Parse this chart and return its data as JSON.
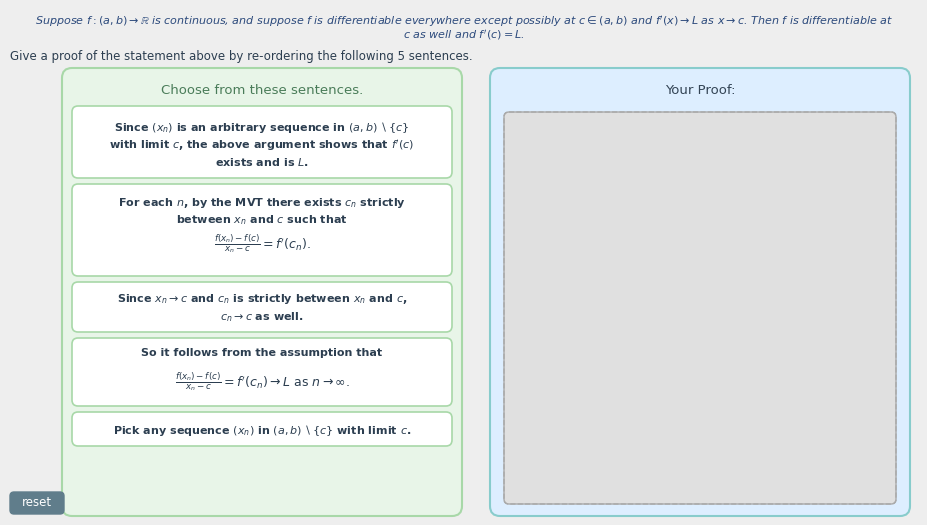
{
  "bg_color": "#eeeeee",
  "title_line1": "Suppose $f:(a,b)\\to\\mathbb{R}$ is continuous, and suppose $f$ is differentiable everywhere except possibly at $c\\in(a,b)$ and $f^{\\prime}(x)\\to L$ as $x\\to c$. Then $f$ is differentiable at",
  "title_line2": "$c$ as well and $f^{\\prime}(c)=L$.",
  "subtitle": "Give a proof of the statement above by re-ordering the following 5 sentences.",
  "left_panel_bg": "#e8f5e8",
  "left_panel_border": "#a8d8a8",
  "left_panel_title": "Choose from these sentences.",
  "left_panel_title_color": "#4a7c59",
  "right_panel_bg": "#ddeeff",
  "right_panel_border": "#88cccc",
  "right_panel_title": "Your Proof:",
  "right_panel_title_color": "#334455",
  "right_inner_bg": "#e0e0e0",
  "right_inner_border": "#aaaaaa",
  "card_bg": "#ffffff",
  "card_border": "#a8d8a8",
  "text_color": "#2c3e50",
  "italic_color": "#2c4a7c",
  "reset_bg": "#607d8b",
  "reset_text": "reset",
  "reset_text_color": "#ffffff",
  "sentence1_lines": [
    "Since $(x_n)$ is an arbitrary sequence in $(a,b)\\setminus\\{c\\}$",
    "with limit $c$, the above argument shows that $f^{\\prime}(c)$",
    "exists and is $L$."
  ],
  "sentence1_bold": [
    true,
    true,
    true
  ],
  "sentence2_lines": [
    "For each $n$, by the MVT there exists $c_n$ strictly",
    "between $x_n$ and $c$ such that"
  ],
  "sentence2_bold": [
    true,
    true
  ],
  "sentence2_frac": "$\\frac{f(x_n)-f(c)}{x_n-c} = f^{\\prime}(c_n).$",
  "sentence3_lines": [
    "Since $x_n\\to c$ and $c_n$ is strictly between $x_n$ and $c$,",
    "$c_n\\to c$ as well."
  ],
  "sentence3_bold": [
    true,
    true
  ],
  "sentence4_line1": "So it follows from the assumption that",
  "sentence4_frac": "$\\frac{f(x_n)-f(c)}{x_n-c} = f^{\\prime}(c_n)\\to L$ as $n\\to\\infty.$",
  "sentence5": "Pick any sequence $(x_n)$ in $(a,b)\\setminus\\{c\\}$ with limit $c$."
}
